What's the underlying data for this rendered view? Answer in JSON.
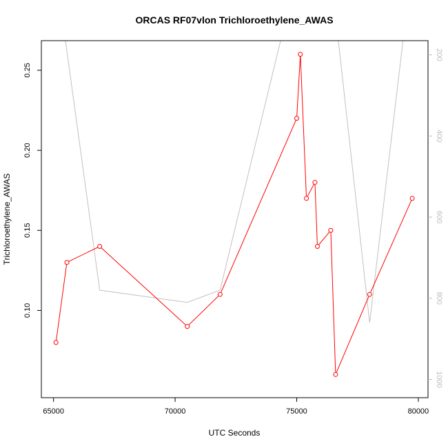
{
  "chart_data": {
    "type": "line",
    "title": "ORCAS RF07vlon Trichloroethylene_AWAS",
    "xlabel": "UTC Seconds",
    "ylabel": "Trichloroethylene_AWAS",
    "xlim": [
      64500,
      80400
    ],
    "ylim": [
      0.0455,
      0.2685
    ],
    "x_ticks": [
      65000,
      70000,
      75000,
      80000
    ],
    "y_ticks": [
      0.1,
      0.15,
      0.2,
      0.25
    ],
    "x_tick_labels": [
      "65000",
      "70000",
      "75000",
      "80000"
    ],
    "y_tick_labels": [
      "0.10",
      "0.15",
      "0.20",
      "0.25"
    ],
    "right_axis": {
      "ylim": [
        1045,
        165
      ],
      "ticks": [
        200,
        400,
        600,
        800,
        1000
      ],
      "tick_labels": [
        "200",
        "400",
        "600",
        "800",
        "1000"
      ],
      "color": "#bdbdbd"
    },
    "series": [
      {
        "color": "#ff0000",
        "marker": "open-circle",
        "axis": "left",
        "x": [
          65100,
          65550,
          66900,
          70500,
          71850,
          75000,
          75150,
          75400,
          75750,
          75850,
          76400,
          76600,
          78000,
          79750
        ],
        "y": [
          0.08,
          0.13,
          0.14,
          0.09,
          0.11,
          0.22,
          0.26,
          0.17,
          0.18,
          0.14,
          0.15,
          0.06,
          0.11,
          0.17
        ]
      },
      {
        "color": "#c0c0c0",
        "marker": "none",
        "axis": "right",
        "x": [
          65000,
          66900,
          70500,
          71850,
          74600,
          75300,
          76500,
          78000,
          79500
        ],
        "y": [
          -50,
          780,
          810,
          780,
          100,
          -20,
          50,
          860,
          100
        ]
      }
    ],
    "grid": false,
    "legend": "none"
  }
}
